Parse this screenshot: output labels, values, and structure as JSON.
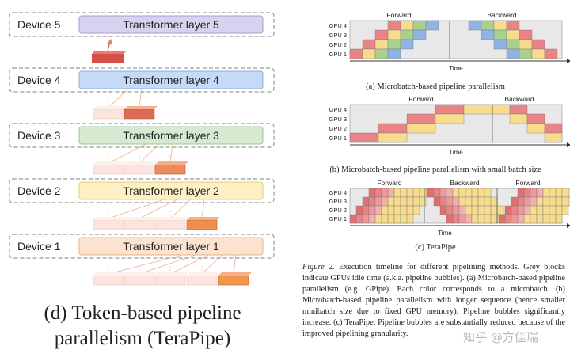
{
  "left": {
    "devices": [
      {
        "device": "Device 5",
        "layer": "Transformer layer 5",
        "color": "#d9d2ee",
        "border": "#a99bd3"
      },
      {
        "device": "Device 4",
        "layer": "Transformer layer 4",
        "color": "#c6d9f6",
        "border": "#8eaee0"
      },
      {
        "device": "Device 3",
        "layer": "Transformer layer 3",
        "color": "#d6ead1",
        "border": "#9dc894"
      },
      {
        "device": "Device 2",
        "layer": "Transformer layer 2",
        "color": "#fdf0c4",
        "border": "#e5cc74"
      },
      {
        "device": "Device 1",
        "layer": "Transformer layer 1",
        "color": "#fbe3cf",
        "border": "#e6b48a"
      }
    ],
    "caption": "(d) Token-based pipeline parallelism (TeraPipe)"
  },
  "right": {
    "panel_a": {
      "gpus": [
        "GPU 4",
        "GPU 3",
        "GPU 2",
        "GPU 1"
      ],
      "forward": "Forward",
      "backward": "Backward",
      "axis": "Time",
      "caption": "(a) Microbatch-based pipeline parallelism"
    },
    "panel_b": {
      "gpus": [
        "GPU 4",
        "GPU 3",
        "GPU 2",
        "GPU 1"
      ],
      "forward": "Forward",
      "backward": "Backward",
      "axis": "Time",
      "caption": "(b) Microbatch-based pipeline parallelism with small batch size"
    },
    "panel_c": {
      "gpus": [
        "GPU 4",
        "GPU 3",
        "GPU 2",
        "GPU 1"
      ],
      "forward1": "Forward",
      "backward": "Backward",
      "forward2": "Forward",
      "axis": "Time",
      "caption": "(c) TeraPipe"
    },
    "figure_label": "Figure 2.",
    "figure_text": " Execution timeline for different pipelining methods. Grey blocks indicate GPUs idle time (a.k.a. pipeline bubbles). (a) Microbatch-based pipeline parallelism (e.g. GPipe). Each color corresponds to a microbatch. (b) Microbatch-based pipeline parallelism with longer sequence (hence smaller minibatch size due to fixed GPU memory). Pipeline bubbles significantly increase. (c) TeraPipe. Pipeline bubbles are substantially reduced because of the improved pipelining granularity.",
    "watermark": "知乎 @方佳瑞"
  },
  "colors": {
    "red": "#e88486",
    "yellow": "#f7dc8e",
    "green": "#a9d18e",
    "blue": "#8fb3e2",
    "idle": "#e8e8e8",
    "dark_red": "#d85a50",
    "orange": "#f39a5e"
  }
}
